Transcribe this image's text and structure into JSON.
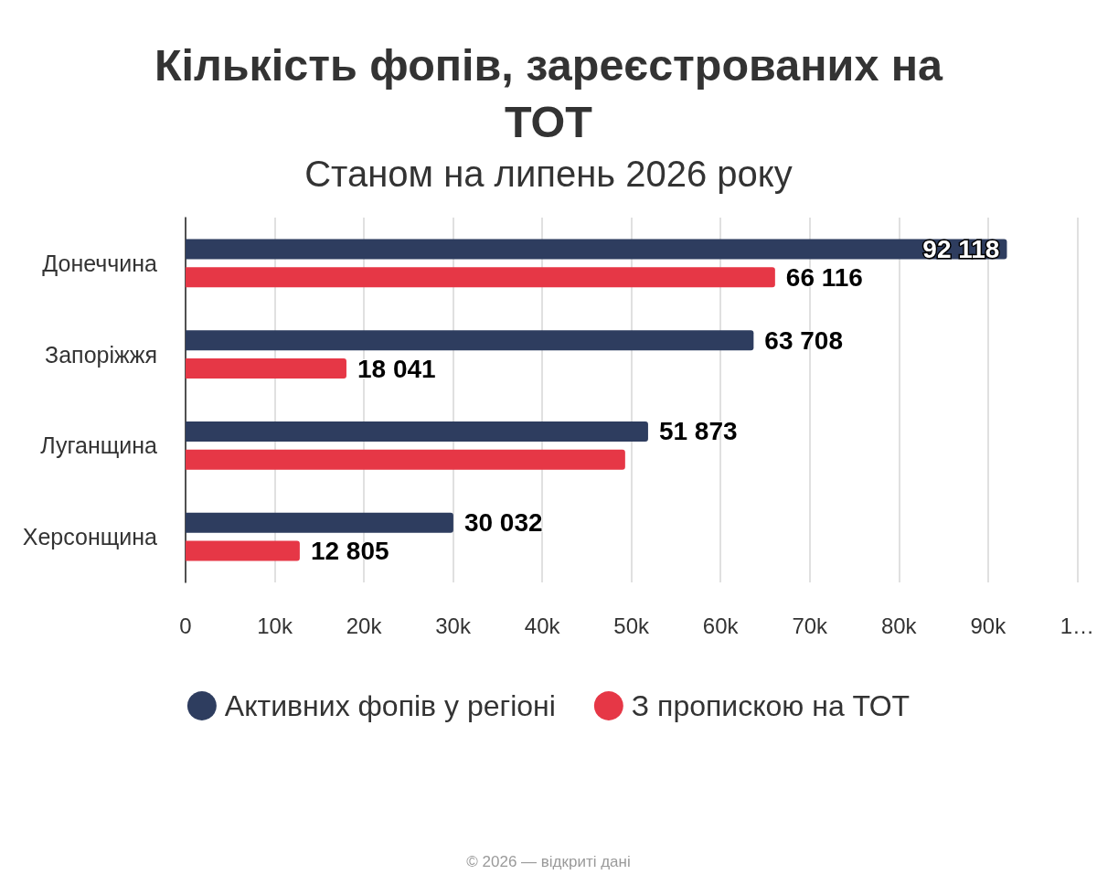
{
  "chart_data": {
    "type": "bar",
    "orientation": "horizontal",
    "title": "Кількість фопів, зареєстрованих на ТОТ",
    "subtitle": "Станом на липень 2026 року",
    "categories": [
      "Донеччина",
      "Запоріжжя",
      "Луганщина",
      "Херсонщина"
    ],
    "series": [
      {
        "name": "Активних фопів у регіоні",
        "color": "#2e3d5f",
        "values": [
          92118,
          63708,
          51873,
          30032
        ],
        "value_labels": [
          "92 118",
          "63 708",
          "51 873",
          "30 032"
        ]
      },
      {
        "name": "З пропискою на ТОТ",
        "color": "#e63746",
        "values": [
          66116,
          18041,
          49300,
          12805
        ],
        "value_labels": [
          "66 116",
          "18 041",
          null,
          "12 805"
        ]
      }
    ],
    "xlim": [
      0,
      100000
    ],
    "xticks": [
      0,
      {
        "value": 10000,
        "label": "10k"
      },
      {
        "value": 20000,
        "label": "20k"
      },
      {
        "value": 30000,
        "label": "30k"
      },
      {
        "value": 40000,
        "label": "40k"
      },
      {
        "value": 50000,
        "label": "50k"
      },
      {
        "value": 60000,
        "label": "60k"
      },
      {
        "value": 70000,
        "label": "70k"
      },
      {
        "value": 80000,
        "label": "80k"
      },
      {
        "value": 90000,
        "label": "90k"
      },
      {
        "value": 100000,
        "label": "1…"
      }
    ],
    "grid": "x",
    "legend": "bottom",
    "annotations": [
      "© 2026 — відкриті дані"
    ]
  }
}
